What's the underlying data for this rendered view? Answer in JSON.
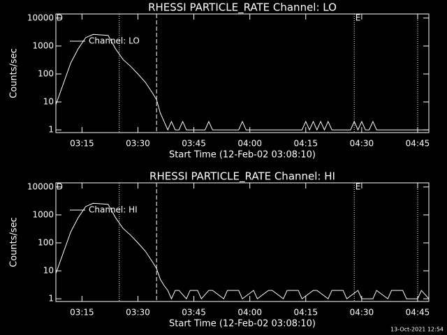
{
  "chart_data": [
    {
      "type": "line",
      "title": "RHESSI PARTICLE_RATE Channel: LO",
      "x_label": "Start Time (12-Feb-02 03:08:10)",
      "y_label": "Counts/sec",
      "ylog": true,
      "legend": "upper left",
      "background": "#000000",
      "foreground": "#ffffff",
      "xlim": [
        "03:08",
        "04:48"
      ],
      "xticks": [
        "03:15",
        "03:30",
        "03:45",
        "04:00",
        "04:15",
        "04:30",
        "04:45"
      ],
      "ylim": [
        0.8,
        14000
      ],
      "yticks": [
        1,
        10,
        100,
        1000,
        10000
      ],
      "markers": [
        {
          "x": "03:25",
          "style": "dotted"
        },
        {
          "x": "03:35",
          "style": "dashed"
        },
        {
          "x": "04:28",
          "style": "dotted"
        },
        {
          "x": "04:45",
          "style": "dotted"
        }
      ],
      "annotations": [
        {
          "x": "03:09",
          "text": "D"
        },
        {
          "x": "04:29",
          "text": "E"
        }
      ],
      "series": [
        {
          "name": "Channel: LO",
          "color": "#ffffff",
          "x": [
            "03:08",
            "03:10",
            "03:12",
            "03:14",
            "03:16",
            "03:18",
            "03:20",
            "03:22",
            "03:24",
            "03:26",
            "03:28",
            "03:30",
            "03:32",
            "03:34",
            "03:35",
            "03:36",
            "03:37",
            "03:38",
            "03:39",
            "03:40",
            "03:41",
            "03:42",
            "03:43",
            "03:48",
            "03:49",
            "03:50",
            "03:57",
            "03:58",
            "03:59",
            "04:14",
            "04:15",
            "04:16",
            "04:17",
            "04:18",
            "04:19",
            "04:20",
            "04:21",
            "04:22",
            "04:27",
            "04:28",
            "04:29",
            "04:30",
            "04:31",
            "04:32",
            "04:33",
            "04:34",
            "04:48"
          ],
          "values": [
            8,
            45,
            250,
            800,
            2000,
            2600,
            2500,
            2400,
            800,
            330,
            190,
            100,
            50,
            20,
            12,
            4,
            2,
            1,
            2,
            1,
            1,
            2,
            1,
            1,
            2,
            1,
            1,
            2,
            1,
            1,
            2,
            1,
            2,
            1,
            2,
            1,
            2,
            1,
            1,
            2,
            1,
            2,
            1,
            1,
            2,
            1,
            1
          ]
        }
      ]
    },
    {
      "type": "line",
      "title": "RHESSI PARTICLE_RATE Channel: HI",
      "x_label": "Start Time (12-Feb-02 03:08:10)",
      "y_label": "Counts/sec",
      "ylog": true,
      "legend": "upper left",
      "background": "#000000",
      "foreground": "#ffffff",
      "xlim": [
        "03:08",
        "04:48"
      ],
      "xticks": [
        "03:15",
        "03:30",
        "03:45",
        "04:00",
        "04:15",
        "04:30",
        "04:45"
      ],
      "ylim": [
        0.8,
        14000
      ],
      "yticks": [
        1,
        10,
        100,
        1000,
        10000
      ],
      "markers": [
        {
          "x": "03:25",
          "style": "dotted"
        },
        {
          "x": "03:35",
          "style": "dashed"
        },
        {
          "x": "04:28",
          "style": "dotted"
        },
        {
          "x": "04:45",
          "style": "dotted"
        }
      ],
      "annotations": [
        {
          "x": "03:09",
          "text": "D"
        },
        {
          "x": "04:29",
          "text": "E"
        }
      ],
      "series": [
        {
          "name": "Channel: HI",
          "color": "#ffffff",
          "x": [
            "03:08",
            "03:10",
            "03:12",
            "03:14",
            "03:16",
            "03:18",
            "03:20",
            "03:22",
            "03:24",
            "03:26",
            "03:28",
            "03:30",
            "03:32",
            "03:34",
            "03:35",
            "03:36",
            "03:37",
            "03:38",
            "03:39",
            "03:40",
            "03:41",
            "03:43",
            "03:44",
            "03:46",
            "03:47",
            "03:49",
            "03:50",
            "03:53",
            "03:54",
            "03:57",
            "03:58",
            "04:01",
            "04:02",
            "04:05",
            "04:06",
            "04:09",
            "04:10",
            "04:13",
            "04:14",
            "04:17",
            "04:18",
            "04:21",
            "04:22",
            "04:25",
            "04:26",
            "04:29",
            "04:30",
            "04:33",
            "04:34",
            "04:37",
            "04:38",
            "04:41",
            "04:42",
            "04:45",
            "04:46",
            "04:48"
          ],
          "values": [
            8,
            45,
            250,
            800,
            2000,
            2600,
            2500,
            2400,
            800,
            330,
            190,
            100,
            50,
            20,
            12,
            5,
            3,
            2,
            1,
            2,
            2,
            1,
            2,
            2,
            1,
            2,
            2,
            1,
            2,
            2,
            1,
            2,
            1,
            2,
            2,
            1,
            2,
            2,
            1,
            2,
            2,
            1,
            2,
            2,
            1,
            2,
            1,
            1,
            2,
            1,
            2,
            2,
            1,
            1,
            2,
            1
          ]
        }
      ]
    }
  ],
  "footer": "13-Oct-2021 12:54"
}
